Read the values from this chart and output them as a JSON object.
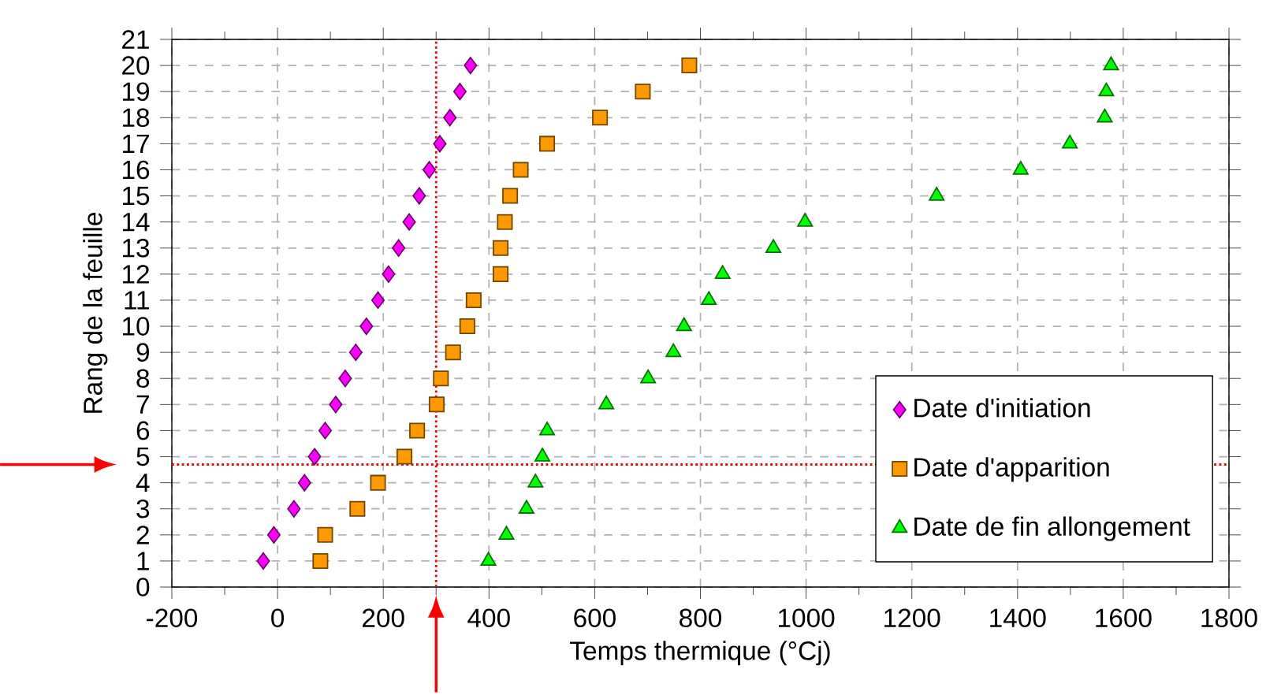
{
  "chart_data": {
    "type": "scatter",
    "xlabel": "Temps thermique (°Cj)",
    "ylabel": "Rang de la feuille",
    "xlim": [
      -200,
      1800
    ],
    "ylim": [
      0,
      21
    ],
    "xticks": [
      -200,
      0,
      200,
      400,
      600,
      800,
      1000,
      1200,
      1400,
      1600,
      1800
    ],
    "yticks": [
      0,
      1,
      2,
      3,
      4,
      5,
      6,
      7,
      8,
      9,
      10,
      11,
      12,
      13,
      14,
      15,
      16,
      17,
      18,
      19,
      20,
      21
    ],
    "grid": true,
    "legend": "bottom right",
    "ref_lines": [
      {
        "axis": "x",
        "value": 300,
        "color": "#ff0000",
        "line_style": "dotted"
      },
      {
        "axis": "y",
        "value": 4.7,
        "color": "#ff0000",
        "line_style": "dotted"
      }
    ],
    "series": [
      {
        "name": "Date d'initiation",
        "color": "#ff00ff",
        "marker": "diamond",
        "x": [
          -27,
          -7,
          31,
          51,
          70,
          90,
          110,
          128,
          148,
          168,
          190,
          210,
          229,
          249,
          268,
          287,
          307,
          326,
          345,
          365
        ],
        "values": [
          1,
          2,
          3,
          4,
          5,
          6,
          7,
          8,
          9,
          10,
          11,
          12,
          13,
          14,
          15,
          16,
          17,
          18,
          19,
          20
        ]
      },
      {
        "name": "Date d'apparition",
        "color": "#ff9900",
        "marker": "square",
        "x": [
          81,
          90,
          151,
          190,
          240,
          264,
          301,
          309,
          332,
          359,
          371,
          422,
          422,
          430,
          440,
          460,
          510,
          610,
          691,
          779
        ],
        "values": [
          1,
          2,
          3,
          4,
          5,
          6,
          7,
          8,
          9,
          10,
          11,
          12,
          13,
          14,
          15,
          16,
          17,
          18,
          19,
          20
        ]
      },
      {
        "name": "Date de fin allongement",
        "color": "#00ff00",
        "marker": "triangle",
        "x": [
          399,
          433,
          471,
          488,
          501,
          510,
          622,
          701,
          749,
          769,
          816,
          842,
          938,
          998,
          1247,
          1406,
          1499,
          1565,
          1568,
          1577
        ],
        "values": [
          1,
          2,
          3,
          4,
          5,
          6,
          7,
          8,
          9,
          10,
          11,
          12,
          13,
          14,
          15,
          16,
          17,
          18,
          19,
          20
        ]
      }
    ]
  }
}
